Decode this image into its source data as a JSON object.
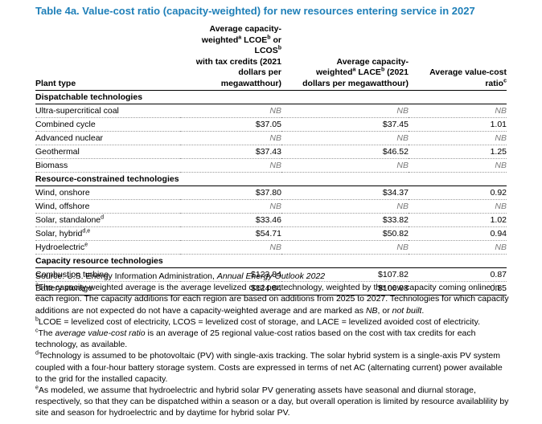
{
  "title": "Table 4a. Value-cost ratio (capacity-weighted) for new resources entering service in 2027",
  "columns": {
    "plant_type": "Plant type",
    "lcoe_line1": "Average capacity-",
    "lcoe_line2_a": "weighted",
    "lcoe_line2_sup1": "a",
    "lcoe_line2_b": " LCOE",
    "lcoe_line2_sup2": "b",
    "lcoe_line2_c": " or LCOS",
    "lcoe_line2_sup3": "b",
    "lcoe_line3": "with tax credits (2021",
    "lcoe_line4": "dollars per megawatthour)",
    "lace_line1": "Average capacity-",
    "lace_line2_a": "weighted",
    "lace_line2_sup1": "a",
    "lace_line2_b": " LACE",
    "lace_line2_sup2": "b",
    "lace_line2_c": " (2021",
    "lace_line3": "dollars per megawatthour)",
    "vcr_a": "Average value-cost ratio",
    "vcr_sup": "c"
  },
  "sections": [
    {
      "name": "Dispatchable technologies",
      "rows": [
        {
          "plant": "Ultra-supercritical coal",
          "sup": "",
          "lcoe": "NB",
          "lace": "NB",
          "vcr": "NB"
        },
        {
          "plant": "Combined cycle",
          "sup": "",
          "lcoe": "$37.05",
          "lace": "$37.45",
          "vcr": "1.01"
        },
        {
          "plant": "Advanced nuclear",
          "sup": "",
          "lcoe": "NB",
          "lace": "NB",
          "vcr": "NB"
        },
        {
          "plant": "Geothermal",
          "sup": "",
          "lcoe": "$37.43",
          "lace": "$46.52",
          "vcr": "1.25"
        },
        {
          "plant": "Biomass",
          "sup": "",
          "lcoe": "NB",
          "lace": "NB",
          "vcr": "NB"
        }
      ]
    },
    {
      "name": "Resource-constrained technologies",
      "rows": [
        {
          "plant": "Wind, onshore",
          "sup": "",
          "lcoe": "$37.80",
          "lace": "$34.37",
          "vcr": "0.92"
        },
        {
          "plant": "Wind, offshore",
          "sup": "",
          "lcoe": "NB",
          "lace": "NB",
          "vcr": "NB"
        },
        {
          "plant": "Solar, standalone",
          "sup": "d",
          "lcoe": "$33.46",
          "lace": "$33.82",
          "vcr": "1.02"
        },
        {
          "plant": "Solar, hybrid",
          "sup": "d,e",
          "lcoe": "$54.71",
          "lace": "$50.82",
          "vcr": "0.94"
        },
        {
          "plant": "Hydroelectric",
          "sup": "e",
          "lcoe": "NB",
          "lace": "NB",
          "vcr": "NB"
        }
      ]
    },
    {
      "name": "Capacity resource technologies",
      "rows": [
        {
          "plant": "Combustion turbine",
          "sup": "",
          "lcoe": "$123.84",
          "lace": "$107.82",
          "vcr": "0.87"
        },
        {
          "plant": "Battery storage",
          "sup": "",
          "lcoe": "$124.84",
          "lace": "$106.08",
          "vcr": "0.85"
        }
      ]
    }
  ],
  "notes": {
    "source_a": "Source: U.S. Energy Information Administration, ",
    "source_b": "Annual Energy Outlook 2022",
    "a_sup": "a",
    "a_text_1": "The capacity-weighted average is the average levelized cost per technology, weighted by the new capacity coming online in each region. The capacity additions for each region are based on additions from 2025 to 2027. Technologies for which capacity additions are not expected do not have a capacity-weighted average and are marked as ",
    "a_text_nb": "NB",
    "a_text_2": ", or ",
    "a_text_notbuilt": "not built",
    "a_text_3": ".",
    "b_sup": "b",
    "b_text": "LCOE = levelized cost of electricity, LCOS = levelized cost of storage, and LACE = levelized avoided cost of electricity.",
    "c_sup": "c",
    "c_text_1": "The ",
    "c_text_it": "average value-cost ratio",
    "c_text_2": " is an average of 25 regional value-cost ratios based on the cost with tax credits for each technology, as available.",
    "d_sup": "d",
    "d_text": "Technology is assumed to be photovoltaic (PV) with single-axis tracking. The solar hybrid system is a single-axis PV system coupled with a four-hour battery storage system. Costs are expressed in terms of net AC (alternating current) power available to the grid for the installed capacity.",
    "e_sup": "e",
    "e_text": "As modeled, we assume that hydroelectric and hybrid solar PV generating assets have seasonal and diurnal storage, respectively, so that they can be dispatched within a season or a day, but overall operation is limited by resource availablility by site and season for hydroelectric and by daytime for hybrid solar PV."
  }
}
